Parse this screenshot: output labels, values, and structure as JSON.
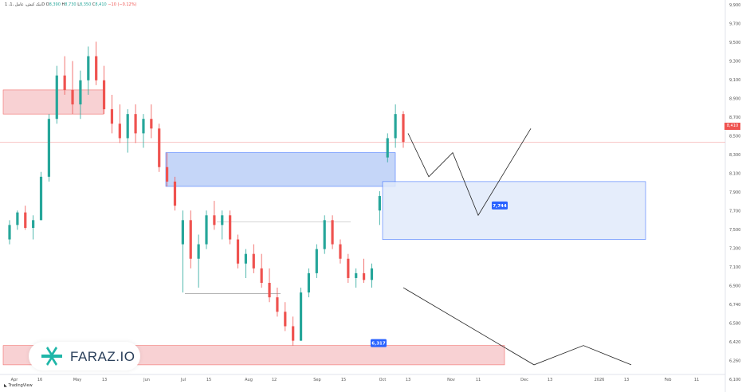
{
  "header": {
    "symbol": "1 ،بنک کیش، عامل ،1D",
    "open_label": "O",
    "open": "8,390",
    "high_label": "H",
    "high": "8,730",
    "low_label": "L",
    "low": "8,350",
    "close_label": "C",
    "close": "8,410",
    "change": "−10 (−0.12%)"
  },
  "brand": {
    "tradingview": "TradingView",
    "watermark": "FARAZ.IO"
  },
  "colors": {
    "up": "#26a69a",
    "down": "#ef5350",
    "zone_red": "#f7c9cc",
    "zone_blue": "#bcd0f7",
    "zone_blue_light": "#e1ebfb",
    "label_blue": "#2962ff"
  },
  "chart_data": {
    "type": "candlestick",
    "ylim": [
      6000,
      9800
    ],
    "y_ticks": [
      "9,900",
      "9,700",
      "9,500",
      "9,300",
      "9,100",
      "8,900",
      "8,700",
      "8,500",
      "8,300",
      "8,100",
      "7,900",
      "7,700",
      "7,500",
      "7,300",
      "7,100",
      "6,900",
      "6,740",
      "6,580",
      "6,420",
      "6,260",
      "6,100"
    ],
    "x_ticks": [
      "Apr",
      "16",
      "May",
      "13",
      "Jun",
      "Jul",
      "15",
      "Aug",
      "12",
      "Sep",
      "15",
      "Oct",
      "13",
      "Nov",
      "11",
      "Dec",
      "13",
      "2026",
      "13",
      "Feb",
      "11"
    ],
    "last_price": "8,410",
    "annotations": [
      {
        "text": "7,744",
        "value": 7744
      },
      {
        "text": "6,317",
        "value": 6317
      }
    ],
    "candles": [
      [
        7400,
        7600,
        7350,
        7550
      ],
      [
        7550,
        7700,
        7500,
        7680
      ],
      [
        7680,
        7750,
        7500,
        7520
      ],
      [
        7520,
        7650,
        7400,
        7600
      ],
      [
        7600,
        8100,
        7600,
        8050
      ],
      [
        8050,
        8700,
        8000,
        8650
      ],
      [
        8650,
        9200,
        8600,
        9100
      ],
      [
        9100,
        9300,
        8900,
        8950
      ],
      [
        8950,
        9250,
        8700,
        8800
      ],
      [
        8800,
        9150,
        8650,
        9050
      ],
      [
        9050,
        9400,
        8900,
        9300
      ],
      [
        9300,
        9450,
        9000,
        9050
      ],
      [
        9050,
        9200,
        8700,
        8750
      ],
      [
        8750,
        8900,
        8500,
        8600
      ],
      [
        8600,
        8800,
        8400,
        8450
      ],
      [
        8450,
        8750,
        8300,
        8700
      ],
      [
        8700,
        8800,
        8400,
        8500
      ],
      [
        8500,
        8700,
        8350,
        8650
      ],
      [
        8650,
        8800,
        8450,
        8550
      ],
      [
        8550,
        8600,
        8100,
        8150
      ],
      [
        8150,
        8300,
        7950,
        8000
      ],
      [
        8000,
        8050,
        7700,
        7750
      ],
      [
        7350,
        7700,
        6850,
        7600
      ],
      [
        7600,
        7700,
        7100,
        7200
      ],
      [
        7200,
        7450,
        6900,
        7350
      ],
      [
        7350,
        7700,
        7300,
        7650
      ],
      [
        7650,
        7800,
        7500,
        7550
      ],
      [
        7550,
        7700,
        7400,
        7650
      ],
      [
        7650,
        7700,
        7350,
        7400
      ],
      [
        7400,
        7450,
        7100,
        7150
      ],
      [
        7150,
        7300,
        7000,
        7250
      ],
      [
        7250,
        7350,
        7050,
        7100
      ],
      [
        7100,
        7250,
        6900,
        6950
      ],
      [
        6950,
        7100,
        6750,
        6800
      ],
      [
        6800,
        6900,
        6600,
        6650
      ],
      [
        6650,
        6750,
        6450,
        6500
      ],
      [
        6500,
        6600,
        6300,
        6350
      ],
      [
        6350,
        6900,
        6350,
        6850
      ],
      [
        6850,
        7100,
        6800,
        7050
      ],
      [
        7050,
        7350,
        7000,
        7300
      ],
      [
        7300,
        7650,
        7250,
        7600
      ],
      [
        7600,
        7650,
        7300,
        7350
      ],
      [
        7350,
        7400,
        7150,
        7200
      ],
      [
        7200,
        7250,
        6950,
        7000
      ],
      [
        7000,
        7100,
        6900,
        7050
      ],
      [
        7050,
        7200,
        6950,
        6980
      ],
      [
        6980,
        7150,
        6900,
        7100
      ],
      [
        7700,
        7900,
        7550,
        7850
      ],
      [
        8250,
        8500,
        8200,
        8450
      ],
      [
        8450,
        8800,
        8350,
        8700
      ],
      [
        8700,
        8730,
        8350,
        8410
      ]
    ],
    "zones": [
      {
        "name": "supply-top",
        "low": 8700,
        "high": 8950
      },
      {
        "name": "demand-mid",
        "low": 7950,
        "high": 8300
      },
      {
        "name": "demand-forecast",
        "low": 7400,
        "high": 8000
      },
      {
        "name": "support-bottom",
        "low": 6100,
        "high": 6300
      }
    ],
    "forecast_up": [
      8500,
      8050,
      8300,
      7650,
      8550
    ],
    "forecast_down": [
      6900,
      6100,
      6300,
      6100
    ]
  }
}
